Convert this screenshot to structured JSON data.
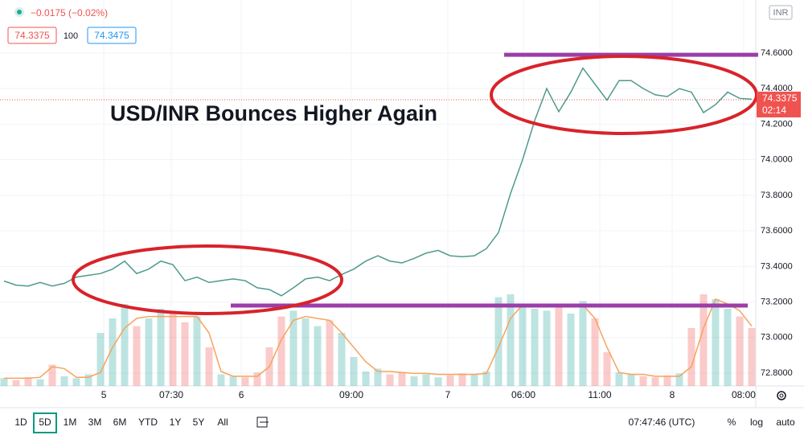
{
  "chart_data": {
    "type": "line",
    "annotation": "USD/INR Bounces Higher Again",
    "currency": "INR",
    "change": "−0.0175 (−0.02%)",
    "bid": 74.3375,
    "spread": "100",
    "ask": 74.3475,
    "last_price": 74.3375,
    "countdown": "02:14",
    "color": "#4f9a8c",
    "volume_up_color": "#26a69a",
    "volume_down_color": "#ef5350",
    "ma_color": "#f7a35c",
    "grid": true,
    "x": [
      0,
      1,
      2,
      3,
      4,
      5,
      6,
      7,
      8,
      9,
      10,
      11,
      12,
      13,
      14,
      15,
      16,
      17,
      18,
      19,
      20,
      21,
      22,
      23,
      24,
      25,
      26,
      27,
      28,
      29,
      30,
      31,
      32,
      33,
      34,
      35,
      36,
      37,
      38,
      39,
      40,
      41,
      42,
      43,
      44,
      45,
      46,
      47,
      48,
      49,
      50,
      51,
      52,
      53,
      54,
      55,
      56,
      57,
      58,
      59,
      60,
      61,
      62
    ],
    "xlim": [
      -0.333,
      62.333
    ],
    "xticks": [
      {
        "value": 8.27,
        "label": "5"
      },
      {
        "value": 13.87,
        "label": "07:30"
      },
      {
        "value": 19.67,
        "label": "6"
      },
      {
        "value": 28.8,
        "label": "09:00"
      },
      {
        "value": 36.8,
        "label": "7"
      },
      {
        "value": 43.07,
        "label": "06:00"
      },
      {
        "value": 49.4,
        "label": "11:00"
      },
      {
        "value": 55.4,
        "label": "8"
      },
      {
        "value": 61.33,
        "label": "08:00"
      }
    ],
    "ylim": [
      72.728,
      74.898
    ],
    "yticks": [
      {
        "value": 72.8,
        "label": "72.8000"
      },
      {
        "value": 73.0,
        "label": "73.0000"
      },
      {
        "value": 73.2,
        "label": "73.2000"
      },
      {
        "value": 73.4,
        "label": "73.4000"
      },
      {
        "value": 73.6,
        "label": "73.6000"
      },
      {
        "value": 73.8,
        "label": "73.8000"
      },
      {
        "value": 74.0,
        "label": "74.0000"
      },
      {
        "value": 74.2,
        "label": "74.2000"
      },
      {
        "value": 74.4,
        "label": "74.4000"
      },
      {
        "value": 74.6,
        "label": "74.6000"
      }
    ],
    "series": [
      {
        "values": [
          73.318,
          73.295,
          73.29,
          73.31,
          73.29,
          73.305,
          73.34,
          73.35,
          73.36,
          73.385,
          73.43,
          73.36,
          73.385,
          73.43,
          73.41,
          73.32,
          73.34,
          73.31,
          73.32,
          73.33,
          73.32,
          73.28,
          73.27,
          73.235,
          73.28,
          73.33,
          73.34,
          73.32,
          73.355,
          73.385,
          73.43,
          73.46,
          73.43,
          73.42,
          73.445,
          73.475,
          73.49,
          73.46,
          73.455,
          73.46,
          73.5,
          73.59,
          73.81,
          74.0,
          74.22,
          74.4,
          74.27,
          74.38,
          74.515,
          74.425,
          74.335,
          74.445,
          74.445,
          74.4,
          74.365,
          74.355,
          74.4,
          74.38,
          74.265,
          74.31,
          74.38,
          74.345,
          74.34
        ]
      }
    ],
    "vlim": [
      0,
      100
    ],
    "volume": [
      8,
      6,
      9,
      7,
      22,
      10,
      8,
      12,
      55,
      70,
      85,
      62,
      70,
      80,
      75,
      66,
      72,
      40,
      12,
      10,
      9,
      14,
      40,
      72,
      78,
      70,
      62,
      68,
      55,
      30,
      15,
      18,
      12,
      14,
      10,
      12,
      9,
      11,
      13,
      12,
      15,
      92,
      95,
      85,
      80,
      78,
      82,
      75,
      88,
      70,
      35,
      14,
      12,
      10,
      9,
      11,
      13,
      60,
      95,
      90,
      80,
      72,
      60
    ],
    "volume_ma": [
      8,
      8,
      8,
      9,
      20,
      18,
      9,
      9,
      14,
      40,
      60,
      70,
      72,
      72,
      72,
      72,
      72,
      55,
      15,
      10,
      10,
      10,
      20,
      48,
      68,
      72,
      70,
      68,
      55,
      40,
      25,
      15,
      15,
      14,
      13,
      13,
      12,
      12,
      12,
      12,
      13,
      40,
      70,
      84,
      82,
      83,
      82,
      84,
      84,
      70,
      40,
      14,
      12,
      12,
      10,
      10,
      10,
      20,
      60,
      90,
      85,
      78,
      62
    ],
    "levels": [
      {
        "value": 74.59,
        "x": [
          41.47,
          62.53
        ]
      },
      {
        "value": 73.18,
        "x": [
          18.8,
          61.67
        ]
      }
    ],
    "level_color": "#9c3ea8"
  },
  "toolbar": {
    "ranges": [
      "1D",
      "5D",
      "1M",
      "3M",
      "6M",
      "YTD",
      "1Y",
      "5Y",
      "All"
    ],
    "active": "5D",
    "clock": "07:47:46 (UTC)",
    "options": [
      "%",
      "log",
      "auto"
    ]
  }
}
